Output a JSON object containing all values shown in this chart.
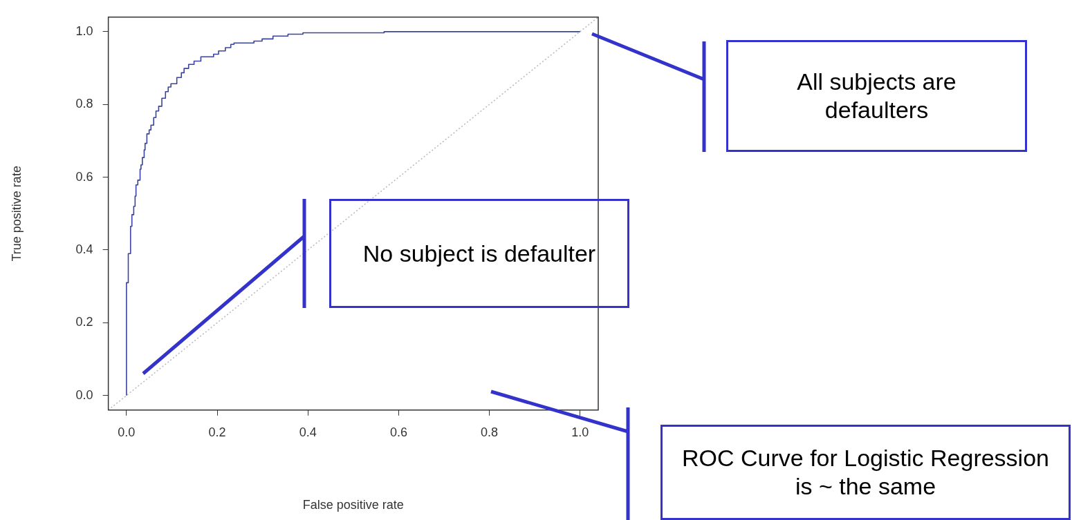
{
  "chart_data": {
    "type": "step",
    "xlabel": "False positive rate",
    "ylabel": "True positive rate",
    "xlim": [
      -0.04,
      1.04
    ],
    "ylim": [
      -0.04,
      1.04
    ],
    "xticks": [
      {
        "value": 0,
        "label": "0.0"
      },
      {
        "value": 0.2,
        "label": "0.2"
      },
      {
        "value": 0.4,
        "label": "0.4"
      },
      {
        "value": 0.6,
        "label": "0.6"
      },
      {
        "value": 0.8,
        "label": "0.8"
      },
      {
        "value": 1,
        "label": "1.0"
      }
    ],
    "yticks": [
      {
        "value": 0,
        "label": "0.0"
      },
      {
        "value": 0.2,
        "label": "0.2"
      },
      {
        "value": 0.4,
        "label": "0.4"
      },
      {
        "value": 0.6,
        "label": "0.6"
      },
      {
        "value": 0.8,
        "label": "0.8"
      },
      {
        "value": 1,
        "label": "1.0"
      }
    ],
    "grid": false,
    "legend": false,
    "series": [
      {
        "type": "step",
        "color": "#3a43a0",
        "x": [
          0,
          0,
          0.004,
          0.009,
          0.012,
          0.016,
          0.019,
          0.021,
          0.025,
          0.03,
          0.032,
          0.035,
          0.039,
          0.041,
          0.045,
          0.05,
          0.054,
          0.06,
          0.065,
          0.071,
          0.078,
          0.086,
          0.092,
          0.098,
          0.111,
          0.121,
          0.127,
          0.137,
          0.149,
          0.164,
          0.192,
          0.203,
          0.218,
          0.23,
          0.237,
          0.281,
          0.299,
          0.323,
          0.356,
          0.389,
          0.568,
          0.586,
          1.0
        ],
        "values": [
          0,
          0.056,
          0.31,
          0.39,
          0.465,
          0.497,
          0.52,
          0.548,
          0.579,
          0.592,
          0.622,
          0.634,
          0.654,
          0.675,
          0.693,
          0.719,
          0.73,
          0.743,
          0.764,
          0.782,
          0.795,
          0.817,
          0.835,
          0.848,
          0.857,
          0.874,
          0.887,
          0.899,
          0.91,
          0.919,
          0.931,
          0.938,
          0.947,
          0.956,
          0.965,
          0.969,
          0.974,
          0.98,
          0.988,
          0.993,
          0.997,
          1.0,
          1.0
        ]
      },
      {
        "type": "line",
        "color": "#bbbbbb",
        "line_style": "dotted",
        "x": [
          -0.04,
          1.04
        ],
        "values": [
          -0.04,
          1.04
        ]
      }
    ],
    "annotations": [
      "All subjects are defaulters",
      "No subject is defaulter",
      "ROC Curve for Logistic Regression is ~ the same"
    ]
  }
}
